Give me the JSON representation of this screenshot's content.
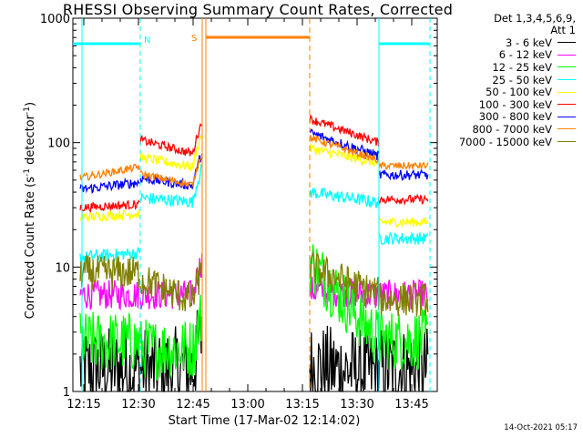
{
  "chart_data": {
    "type": "line",
    "title": "RHESSI Observing Summary Count Rates, Corrected",
    "xlabel": "Start Time (17-Mar-02 12:14:02)",
    "ylabel": "Corrected Count Rate (s",
    "ylabel_sup1": "-1",
    "ylabel_mid": " detector",
    "ylabel_sup2": "-1",
    "ylabel_end": ")",
    "yscale": "log",
    "ylim": [
      1,
      1000
    ],
    "xlim": [
      "12:12",
      "13:52"
    ],
    "x_ticks": [
      "12:15",
      "12:30",
      "12:45",
      "13:00",
      "13:15",
      "13:30",
      "13:45"
    ],
    "y_ticks": [
      "1",
      "10",
      "100",
      "1000"
    ],
    "legend_header": [
      "Det 1,3,4,5,6,9,",
      "Att 1"
    ],
    "series": [
      {
        "name": "3 - 6 keV",
        "color": "#000000",
        "values": [
          [
            12.25,
            1.5
          ],
          [
            12.5,
            1.5
          ],
          [
            12.75,
            1.6
          ],
          [
            13.33,
            1.5
          ],
          [
            13.6,
            1.5
          ],
          [
            13.8,
            1.5
          ]
        ]
      },
      {
        "name": "6 - 12 keV",
        "color": "#ff00ff",
        "values": [
          [
            12.25,
            6
          ],
          [
            12.5,
            6
          ],
          [
            12.75,
            6
          ],
          [
            13.33,
            6
          ],
          [
            13.6,
            6
          ],
          [
            13.8,
            6
          ]
        ]
      },
      {
        "name": "12 - 25 keV",
        "color": "#00ff00",
        "values": [
          [
            12.25,
            2.5
          ],
          [
            12.5,
            2.2
          ],
          [
            12.75,
            2.3
          ],
          [
            13.33,
            12
          ],
          [
            13.6,
            2.6
          ],
          [
            13.8,
            2.6
          ]
        ]
      },
      {
        "name": "25 - 50 keV",
        "color": "#00ffff",
        "values": [
          [
            12.25,
            12.5
          ],
          [
            12.5,
            35
          ],
          [
            12.75,
            34
          ],
          [
            13.33,
            40
          ],
          [
            13.6,
            33
          ],
          [
            13.8,
            17
          ]
        ]
      },
      {
        "name": "50 - 100 keV",
        "color": "#ffff00",
        "values": [
          [
            12.25,
            26
          ],
          [
            12.5,
            75
          ],
          [
            12.75,
            60
          ],
          [
            13.33,
            90
          ],
          [
            13.6,
            65
          ],
          [
            13.8,
            23
          ]
        ]
      },
      {
        "name": "100 - 300 keV",
        "color": "#ff0000",
        "values": [
          [
            12.25,
            31
          ],
          [
            12.5,
            105
          ],
          [
            12.75,
            80
          ],
          [
            13.33,
            155
          ],
          [
            13.6,
            100
          ],
          [
            13.8,
            35
          ]
        ]
      },
      {
        "name": "300 - 800 keV",
        "color": "#0000ff",
        "values": [
          [
            12.25,
            43
          ],
          [
            12.5,
            50
          ],
          [
            12.75,
            43
          ],
          [
            13.33,
            120
          ],
          [
            13.6,
            75
          ],
          [
            13.8,
            55
          ]
        ]
      },
      {
        "name": "800 - 7000 keV",
        "color": "#ff8000",
        "values": [
          [
            12.25,
            55
          ],
          [
            12.5,
            55
          ],
          [
            12.75,
            45
          ],
          [
            13.33,
            110
          ],
          [
            13.6,
            70
          ],
          [
            13.8,
            65
          ]
        ]
      },
      {
        "name": "7000 - 15000 keV",
        "color": "#808000",
        "values": [
          [
            12.25,
            9
          ],
          [
            12.5,
            8
          ],
          [
            12.75,
            5
          ],
          [
            13.33,
            10
          ],
          [
            13.6,
            6
          ],
          [
            13.8,
            5.5
          ]
        ]
      }
    ],
    "annotations": [
      {
        "text": "N",
        "color": "#00ccff"
      },
      {
        "text": "S",
        "color": "#ff8000"
      }
    ],
    "footer": "14-Oct-2021 05:17"
  }
}
